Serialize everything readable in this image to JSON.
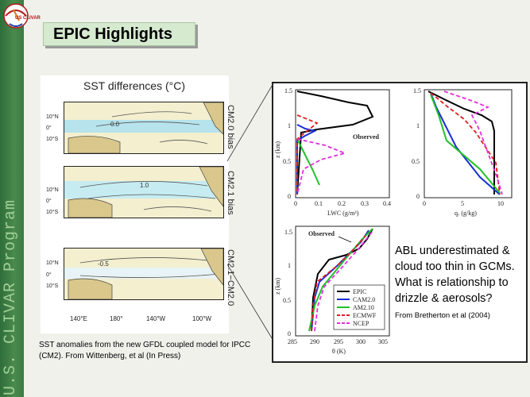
{
  "sidebar": {
    "text": "U.S. CLIVAR Program"
  },
  "logo": {
    "text": "US CLIVAR"
  },
  "slide": {
    "title": "EPIC Highlights"
  },
  "sst": {
    "title": "SST differences (°C)",
    "panels": [
      {
        "label": "CM2.0 bias",
        "contour": "0.0"
      },
      {
        "label": "CM2.1 bias",
        "contour": "1.0"
      },
      {
        "label": "CM2.1−CM2.0",
        "contour": "-0.5"
      }
    ],
    "lat_ticks": [
      "10°N",
      "0°",
      "10°S"
    ],
    "lon_ticks": [
      "140°E",
      "180°",
      "140°W",
      "100°W"
    ],
    "caption": "SST anomalies from the new GFDL coupled model for IPCC (CM2). From Wittenberg, et al (In Press)"
  },
  "abl": {
    "observed_label": "Observed",
    "z_label": "z (km)",
    "lwc_label": "LWC (g/m³)",
    "q_label": "qᵥ (g/kg)",
    "theta_label": "θ (K)",
    "lwc_ticks": [
      "0",
      "0.1",
      "0.2",
      "0.3",
      "0.4"
    ],
    "q_ticks": [
      "0",
      "5",
      "10"
    ],
    "theta_ticks": [
      "285",
      "290",
      "295",
      "300",
      "305"
    ],
    "z_ticks": [
      "0",
      "0.5",
      "1",
      "1.5"
    ],
    "legend": [
      {
        "name": "EPIC",
        "color": "#000000"
      },
      {
        "name": "CAM2.0",
        "color": "#1a2fd6"
      },
      {
        "name": "AM2.10",
        "color": "#22c02a"
      },
      {
        "name": "ECMWF",
        "color": "#e21c1c"
      },
      {
        "name": "NCEP",
        "color": "#e22ee0"
      }
    ],
    "caption": "ABL underestimated & cloud too thin in GCMs. What is relationship to drizzle & aerosols?",
    "citation": "From Bretherton et al (2004)"
  }
}
